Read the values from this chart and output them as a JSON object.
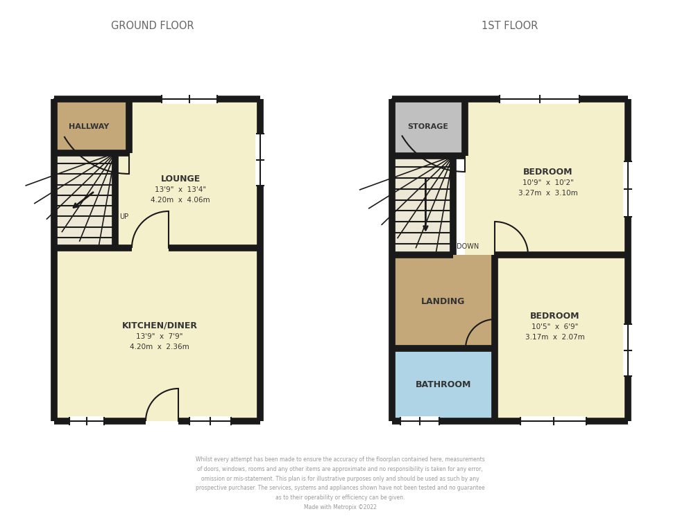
{
  "bg_color": "#ffffff",
  "wall_color": "#1a1a1a",
  "wall_lw": 7,
  "room_colors": {
    "lounge": "#f5f0cc",
    "kitchen": "#f5f0cc",
    "hallway": "#c4a87a",
    "staircase_gf": "#ede8d5",
    "bedroom1": "#f5f0cc",
    "bedroom2": "#f5f0cc",
    "landing": "#c4a87a",
    "bathroom": "#aed4e6",
    "storage": "#c0c0c0",
    "staircase_1f": "#ede8d5"
  },
  "header_color": "#666666",
  "label_color": "#333333",
  "disclaimer_color": "#999999",
  "ground_floor_label": "GROUND FLOOR",
  "first_floor_label": "1ST FLOOR",
  "disclaimer": "Whilst every attempt has been made to ensure the accuracy of the floorplan contained here, measurements\nof doors, windows, rooms and any other items are approximate and no responsibility is taken for any error,\nomission or mis-statement. This plan is for illustrative purposes only and should be used as such by any\nprospective purchaser. The services, systems and appliances shown have not been tested and no guarantee\nas to their operability or efficiency can be given.\nMade with Metropix ©2022"
}
